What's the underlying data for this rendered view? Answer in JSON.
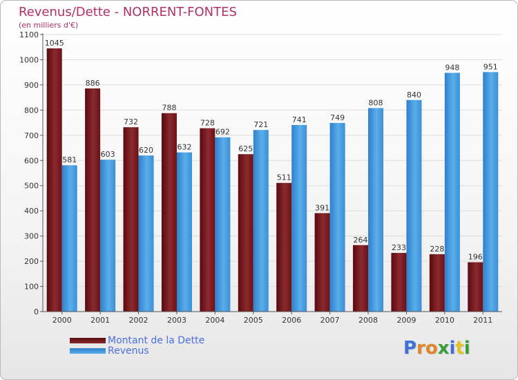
{
  "title": "Revenus/Dette - NORRENT-FONTES",
  "subtitle": "(en milliers d'€)",
  "legend": [
    {
      "label": "Montant de la Dette",
      "color": "#7a1a1e"
    },
    {
      "label": "Revenus",
      "color": "#3f97df"
    }
  ],
  "logo": {
    "text": "Proxiti",
    "letter_colors": [
      "#3f6fd8",
      "#e0862a",
      "#e0862a",
      "#3a9d3a",
      "#3f6fd8",
      "#e3c324",
      "#3a9d3a"
    ]
  },
  "chart_data": {
    "type": "bar",
    "title": "Revenus/Dette - NORRENT-FONTES",
    "subtitle": "(en milliers d'€)",
    "xlabel": "",
    "ylabel": "",
    "ylim": [
      0,
      1100
    ],
    "yticks": [
      0,
      100,
      200,
      300,
      400,
      500,
      600,
      700,
      800,
      900,
      1000,
      1100
    ],
    "grid": true,
    "categories": [
      "2000",
      "2001",
      "2002",
      "2003",
      "2004",
      "2005",
      "2006",
      "2007",
      "2008",
      "2009",
      "2010",
      "2011"
    ],
    "series": [
      {
        "name": "Montant de la Dette",
        "color": "#7a1a1e",
        "values": [
          1045,
          886,
          732,
          788,
          728,
          625,
          511,
          391,
          264,
          233,
          228,
          196
        ]
      },
      {
        "name": "Revenus",
        "color": "#3f97df",
        "values": [
          581,
          603,
          620,
          632,
          692,
          721,
          741,
          749,
          808,
          840,
          948,
          951
        ]
      }
    ],
    "legend_position": "bottom-left"
  }
}
